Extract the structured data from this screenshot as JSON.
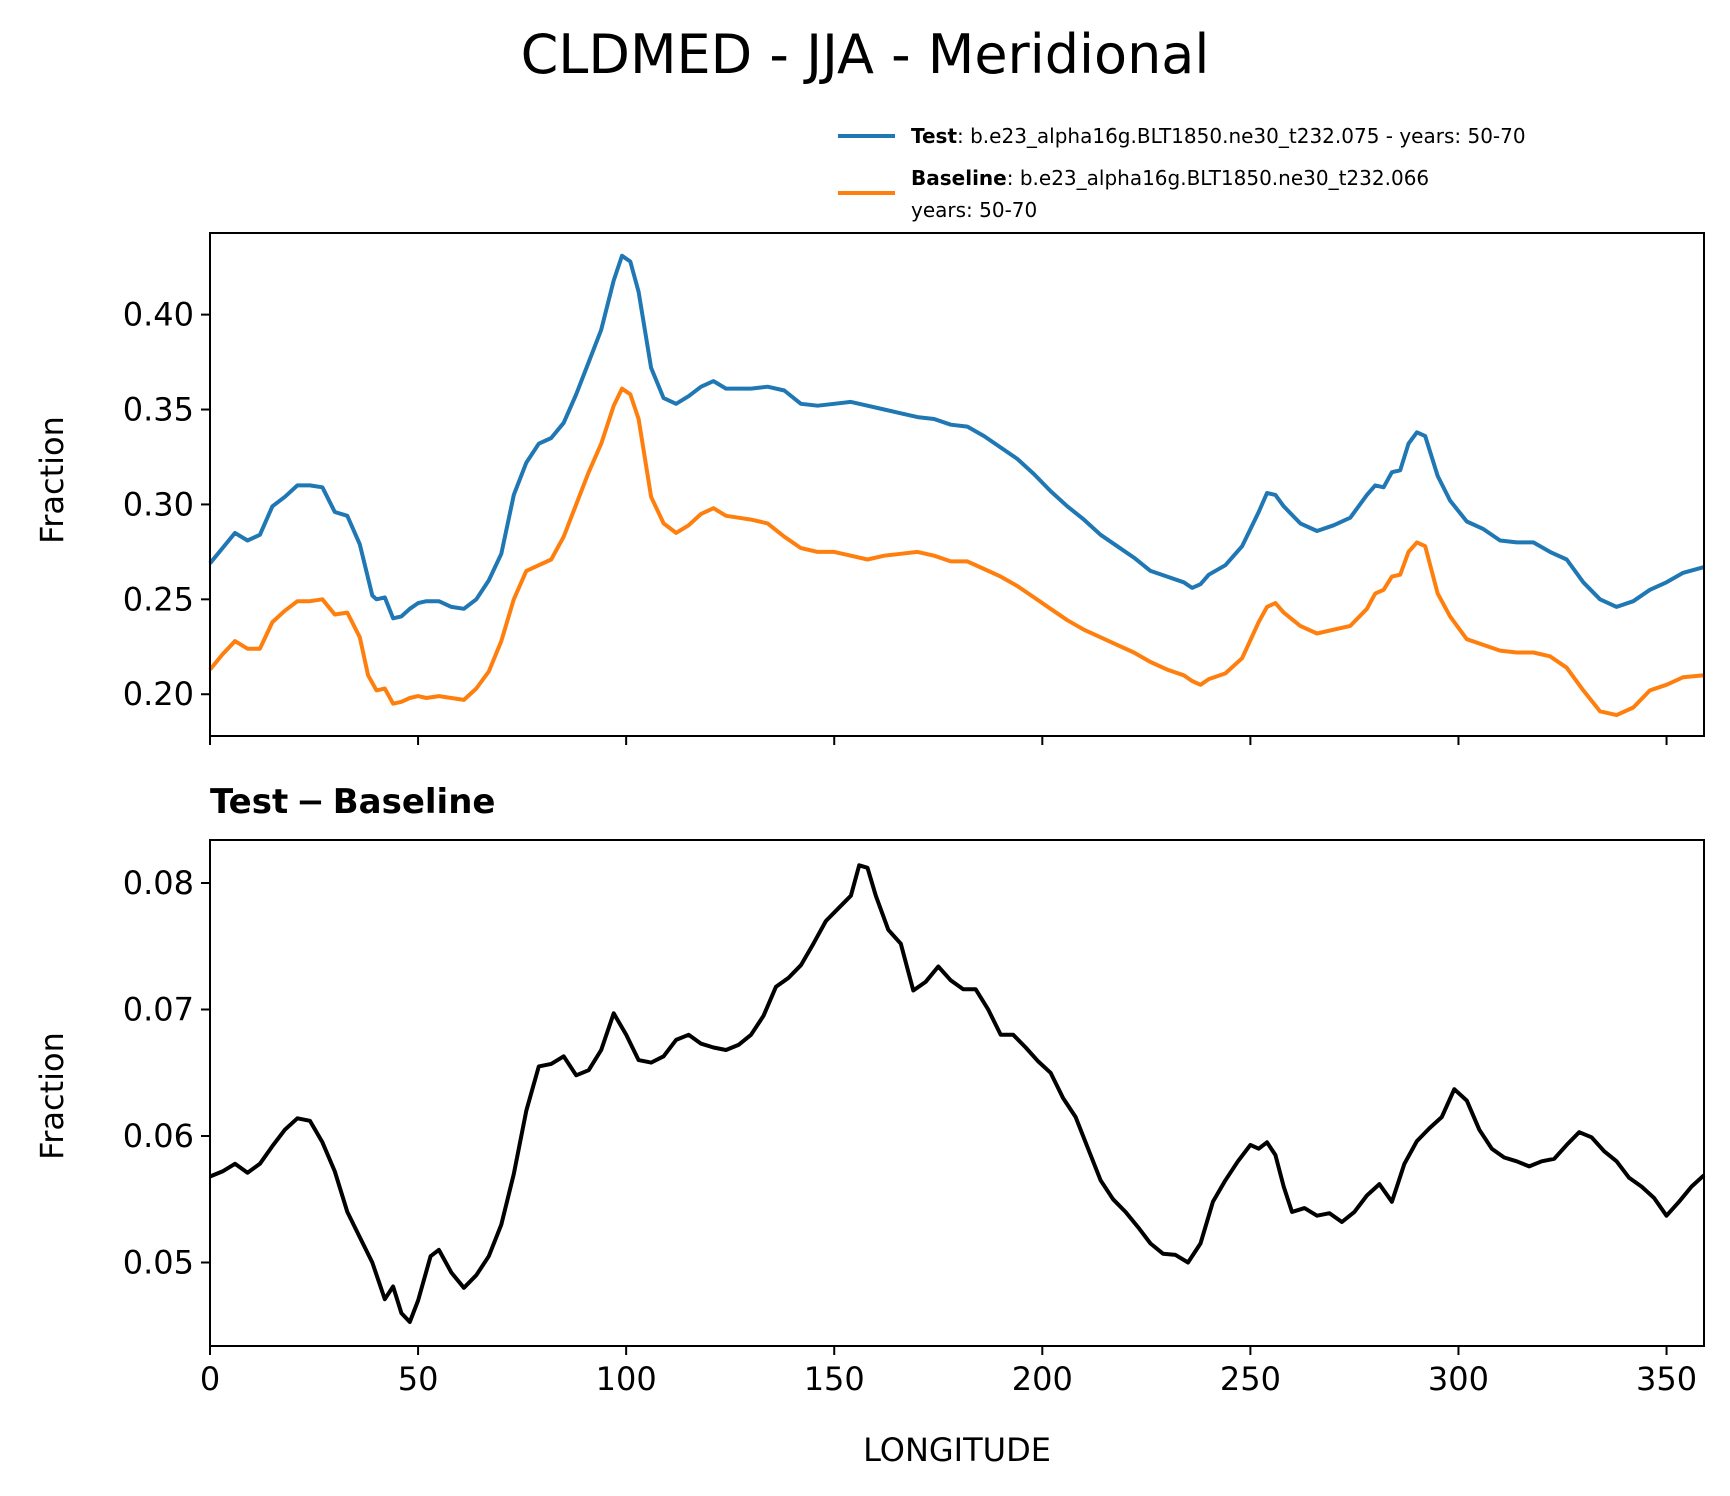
{
  "figure": {
    "title": "CLDMED - JJA - Meridional"
  },
  "legend": {
    "test_name": "Test",
    "test_desc": ": b.e23_alpha16g.BLT1850.ne30_t232.075 - years: 50-70",
    "baseline_name": "Baseline",
    "baseline_desc_line1": ": b.e23_alpha16g.BLT1850.ne30_t232.066",
    "baseline_desc_line2": "years: 50-70"
  },
  "colors": {
    "test": "#1f77b4",
    "baseline": "#ff7f0e",
    "diff": "#000000"
  },
  "chart_data": [
    {
      "type": "line",
      "title": "",
      "xlabel": "",
      "ylabel": "Fraction",
      "xlim": [
        0,
        359
      ],
      "ylim": [
        0.178,
        0.443
      ],
      "xticks": [
        0,
        50,
        100,
        150,
        200,
        250,
        300,
        350
      ],
      "yticks": [
        0.2,
        0.25,
        0.3,
        0.35,
        0.4
      ],
      "ytick_labels": [
        "0.20",
        "0.25",
        "0.30",
        "0.35",
        "0.40"
      ],
      "show_xtick_labels": false,
      "series": [
        {
          "name": "Test",
          "color": "#1f77b4",
          "x": [
            0,
            3,
            6,
            9,
            12,
            15,
            18,
            21,
            24,
            27,
            30,
            33,
            36,
            39,
            40,
            42,
            44,
            46,
            48,
            50,
            52,
            55,
            58,
            61,
            64,
            67,
            70,
            73,
            76,
            79,
            82,
            85,
            88,
            91,
            94,
            97,
            99,
            101,
            103,
            106,
            109,
            112,
            115,
            118,
            121,
            124,
            127,
            130,
            134,
            138,
            142,
            146,
            150,
            154,
            158,
            162,
            166,
            170,
            174,
            178,
            182,
            186,
            190,
            194,
            198,
            202,
            206,
            210,
            214,
            218,
            222,
            226,
            230,
            234,
            236,
            238,
            240,
            244,
            248,
            252,
            254,
            256,
            258,
            262,
            266,
            270,
            274,
            278,
            280,
            282,
            284,
            286,
            288,
            290,
            292,
            295,
            298,
            302,
            306,
            310,
            314,
            318,
            322,
            326,
            330,
            334,
            338,
            342,
            346,
            350,
            354,
            359
          ],
          "y": [
            0.269,
            0.277,
            0.285,
            0.281,
            0.284,
            0.299,
            0.304,
            0.31,
            0.31,
            0.309,
            0.296,
            0.294,
            0.279,
            0.252,
            0.25,
            0.251,
            0.24,
            0.241,
            0.245,
            0.248,
            0.249,
            0.249,
            0.246,
            0.245,
            0.25,
            0.26,
            0.274,
            0.305,
            0.322,
            0.332,
            0.335,
            0.343,
            0.358,
            0.375,
            0.392,
            0.418,
            0.431,
            0.428,
            0.412,
            0.372,
            0.356,
            0.353,
            0.357,
            0.362,
            0.365,
            0.361,
            0.361,
            0.361,
            0.362,
            0.36,
            0.353,
            0.352,
            0.353,
            0.354,
            0.352,
            0.35,
            0.348,
            0.346,
            0.345,
            0.342,
            0.341,
            0.336,
            0.33,
            0.324,
            0.316,
            0.307,
            0.299,
            0.292,
            0.284,
            0.278,
            0.272,
            0.265,
            0.262,
            0.259,
            0.256,
            0.258,
            0.263,
            0.268,
            0.278,
            0.296,
            0.306,
            0.305,
            0.299,
            0.29,
            0.286,
            0.289,
            0.293,
            0.305,
            0.31,
            0.309,
            0.317,
            0.318,
            0.332,
            0.338,
            0.336,
            0.315,
            0.302,
            0.291,
            0.287,
            0.281,
            0.28,
            0.28,
            0.275,
            0.271,
            0.259,
            0.25,
            0.246,
            0.249,
            0.255,
            0.259,
            0.264,
            0.267
          ]
        },
        {
          "name": "Baseline",
          "color": "#ff7f0e",
          "x": [
            0,
            3,
            6,
            9,
            12,
            15,
            18,
            21,
            24,
            27,
            30,
            33,
            36,
            38,
            40,
            42,
            44,
            46,
            48,
            50,
            52,
            55,
            58,
            61,
            64,
            67,
            70,
            73,
            76,
            79,
            82,
            85,
            88,
            91,
            94,
            97,
            99,
            101,
            103,
            106,
            109,
            112,
            115,
            118,
            121,
            124,
            127,
            130,
            134,
            138,
            142,
            146,
            150,
            154,
            158,
            162,
            166,
            170,
            174,
            178,
            182,
            186,
            190,
            194,
            198,
            202,
            206,
            210,
            214,
            218,
            222,
            226,
            230,
            234,
            236,
            238,
            240,
            244,
            248,
            252,
            254,
            256,
            258,
            262,
            266,
            270,
            274,
            278,
            280,
            282,
            284,
            286,
            288,
            290,
            292,
            295,
            298,
            302,
            306,
            310,
            314,
            318,
            322,
            326,
            330,
            334,
            338,
            342,
            346,
            350,
            354,
            359
          ],
          "y": [
            0.213,
            0.221,
            0.228,
            0.224,
            0.224,
            0.238,
            0.244,
            0.249,
            0.249,
            0.25,
            0.242,
            0.243,
            0.23,
            0.21,
            0.202,
            0.203,
            0.195,
            0.196,
            0.198,
            0.199,
            0.198,
            0.199,
            0.198,
            0.197,
            0.203,
            0.212,
            0.228,
            0.25,
            0.265,
            0.268,
            0.271,
            0.283,
            0.3,
            0.317,
            0.332,
            0.352,
            0.361,
            0.358,
            0.345,
            0.304,
            0.29,
            0.285,
            0.289,
            0.295,
            0.298,
            0.294,
            0.293,
            0.292,
            0.29,
            0.283,
            0.277,
            0.275,
            0.275,
            0.273,
            0.271,
            0.273,
            0.274,
            0.275,
            0.273,
            0.27,
            0.27,
            0.266,
            0.262,
            0.257,
            0.251,
            0.245,
            0.239,
            0.234,
            0.23,
            0.226,
            0.222,
            0.217,
            0.213,
            0.21,
            0.207,
            0.205,
            0.208,
            0.211,
            0.219,
            0.238,
            0.246,
            0.248,
            0.243,
            0.236,
            0.232,
            0.234,
            0.236,
            0.245,
            0.253,
            0.255,
            0.262,
            0.263,
            0.275,
            0.28,
            0.278,
            0.253,
            0.241,
            0.229,
            0.226,
            0.223,
            0.222,
            0.222,
            0.22,
            0.214,
            0.202,
            0.191,
            0.189,
            0.193,
            0.202,
            0.205,
            0.209,
            0.21
          ]
        }
      ]
    },
    {
      "type": "line",
      "title": "Test − Baseline",
      "title_bold_a": "Test",
      "title_op": "−",
      "title_bold_b": "Baseline",
      "xlabel": "LONGITUDE",
      "ylabel": "Fraction",
      "xlim": [
        0,
        359
      ],
      "ylim": [
        0.0434,
        0.0834
      ],
      "xticks": [
        0,
        50,
        100,
        150,
        200,
        250,
        300,
        350
      ],
      "xtick_labels": [
        "0",
        "50",
        "100",
        "150",
        "200",
        "250",
        "300",
        "350"
      ],
      "yticks": [
        0.05,
        0.06,
        0.07,
        0.08
      ],
      "ytick_labels": [
        "0.05",
        "0.06",
        "0.07",
        "0.08"
      ],
      "show_xtick_labels": true,
      "series": [
        {
          "name": "Test − Baseline",
          "color": "#000000",
          "x": [
            0,
            3,
            6,
            9,
            12,
            15,
            18,
            21,
            24,
            27,
            30,
            33,
            36,
            39,
            42,
            44,
            46,
            48,
            50,
            53,
            55,
            58,
            61,
            64,
            67,
            70,
            73,
            76,
            79,
            82,
            85,
            88,
            91,
            94,
            97,
            100,
            103,
            106,
            109,
            112,
            115,
            118,
            121,
            124,
            127,
            130,
            133,
            136,
            139,
            142,
            145,
            148,
            151,
            154,
            156,
            158,
            160,
            163,
            166,
            169,
            172,
            175,
            178,
            181,
            184,
            187,
            190,
            193,
            196,
            199,
            202,
            205,
            208,
            211,
            214,
            217,
            220,
            223,
            226,
            229,
            232,
            235,
            238,
            241,
            244,
            247,
            250,
            252,
            254,
            256,
            258,
            260,
            263,
            266,
            269,
            272,
            275,
            278,
            281,
            284,
            287,
            290,
            293,
            296,
            299,
            302,
            305,
            308,
            311,
            314,
            317,
            320,
            323,
            326,
            329,
            332,
            335,
            338,
            341,
            344,
            347,
            350,
            353,
            356,
            359
          ],
          "y": [
            0.0568,
            0.0572,
            0.0578,
            0.0571,
            0.0578,
            0.0592,
            0.0605,
            0.0614,
            0.0612,
            0.0595,
            0.0572,
            0.054,
            0.052,
            0.05,
            0.0471,
            0.0481,
            0.046,
            0.0453,
            0.047,
            0.0505,
            0.051,
            0.0492,
            0.048,
            0.049,
            0.0505,
            0.053,
            0.057,
            0.062,
            0.0655,
            0.0657,
            0.0663,
            0.0648,
            0.0652,
            0.0668,
            0.0697,
            0.068,
            0.066,
            0.0658,
            0.0663,
            0.0676,
            0.068,
            0.0673,
            0.067,
            0.0668,
            0.0672,
            0.068,
            0.0695,
            0.0718,
            0.0725,
            0.0735,
            0.0752,
            0.077,
            0.078,
            0.079,
            0.0814,
            0.0812,
            0.079,
            0.0763,
            0.0752,
            0.0715,
            0.0722,
            0.0734,
            0.0723,
            0.0716,
            0.0716,
            0.07,
            0.068,
            0.068,
            0.067,
            0.0659,
            0.065,
            0.063,
            0.0615,
            0.059,
            0.0565,
            0.055,
            0.054,
            0.0528,
            0.0515,
            0.0507,
            0.0506,
            0.05,
            0.0515,
            0.0548,
            0.0565,
            0.058,
            0.0593,
            0.059,
            0.0595,
            0.0585,
            0.056,
            0.054,
            0.0543,
            0.0537,
            0.0539,
            0.0532,
            0.054,
            0.0553,
            0.0562,
            0.0548,
            0.0578,
            0.0596,
            0.0606,
            0.0615,
            0.0637,
            0.0628,
            0.0605,
            0.059,
            0.0583,
            0.058,
            0.0576,
            0.058,
            0.0582,
            0.0593,
            0.0603,
            0.0599,
            0.0588,
            0.058,
            0.0567,
            0.056,
            0.0551,
            0.0537,
            0.0548,
            0.056,
            0.0569
          ]
        }
      ]
    }
  ]
}
